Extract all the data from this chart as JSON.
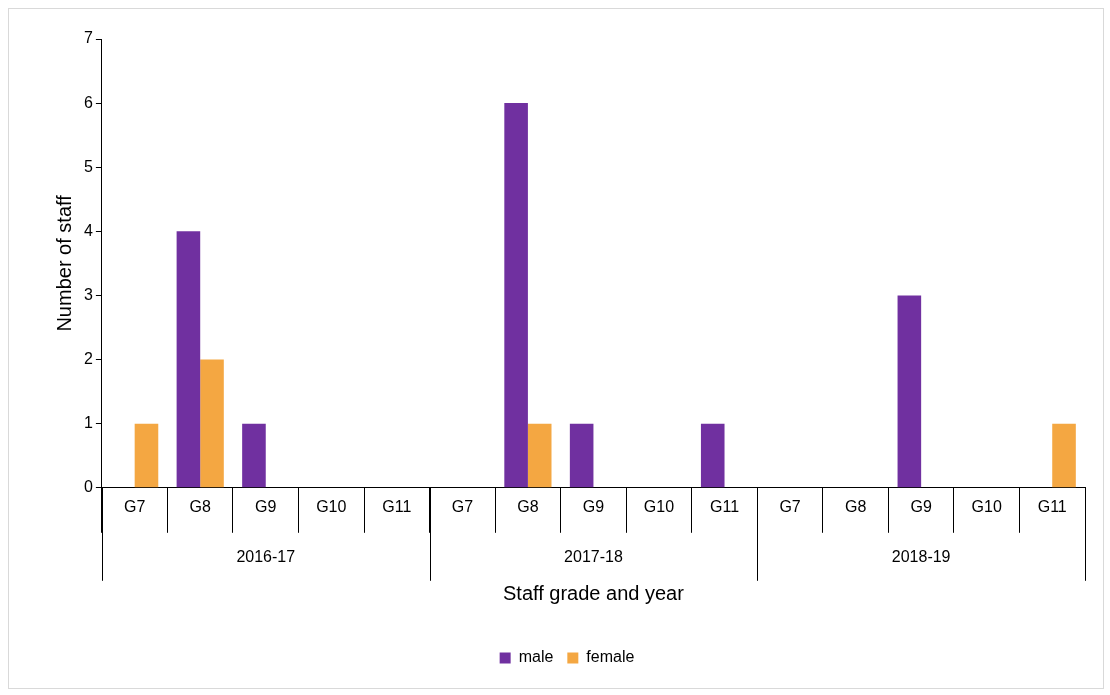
{
  "chart_data": {
    "type": "bar",
    "xlabel": "Staff grade and year",
    "ylabel": "Number of staff",
    "categories": [
      "G7",
      "G8",
      "G9",
      "G10",
      "G11",
      "G7",
      "G8",
      "G9",
      "G10",
      "G11",
      "G7",
      "G8",
      "G9",
      "G10",
      "G11"
    ],
    "series": [
      {
        "name": "male",
        "color": "#7030a0",
        "values": [
          0,
          4,
          1,
          0,
          0,
          0,
          6,
          1,
          0,
          1,
          0,
          0,
          3,
          0,
          0
        ]
      },
      {
        "name": "female",
        "color": "#f4a742",
        "values": [
          1,
          2,
          0,
          0,
          0,
          0,
          1,
          0,
          0,
          0,
          0,
          0,
          0,
          0,
          1
        ]
      }
    ],
    "annotations": [
      "2016-17",
      "2017-18",
      "2018-19"
    ],
    "ylim": [
      0,
      7
    ],
    "yticks": [
      0,
      1,
      2,
      3,
      4,
      5,
      6,
      7
    ],
    "grid": false,
    "legend": "bottom"
  }
}
